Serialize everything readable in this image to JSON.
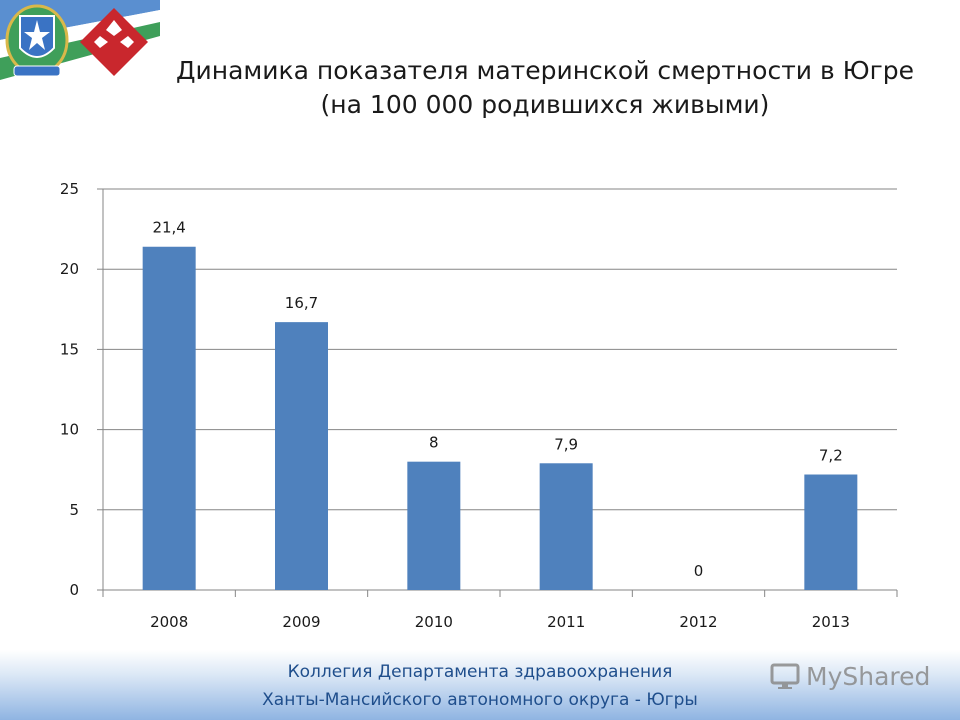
{
  "header": {
    "title_line1": "Динамика показателя материнской смертности в Югре",
    "title_line2": "(на 100 000 родившихся живыми)"
  },
  "colors": {
    "bar": "#4f81bd",
    "grid": "#868686",
    "flag_blue": "#5a8fd0",
    "flag_green": "#3f9f5a",
    "flag_white": "#ffffff",
    "emblem_red": "#c9272d",
    "footer_text": "#1f4e8c"
  },
  "chart_data": {
    "type": "bar",
    "title": "",
    "xlabel": "",
    "ylabel": "",
    "categories": [
      "2008",
      "2009",
      "2010",
      "2011",
      "2012",
      "2013"
    ],
    "values": [
      21.4,
      16.7,
      8,
      7.9,
      0,
      7.2
    ],
    "data_labels": [
      "21,4",
      "16,7",
      "8",
      "7,9",
      "0",
      "7,2"
    ],
    "ylim": [
      0,
      25
    ],
    "yticks": [
      0,
      5,
      10,
      15,
      20,
      25
    ],
    "ytick_labels": [
      "0",
      "5",
      "10",
      "15",
      "20",
      "25"
    ],
    "grid": true,
    "legend": "none"
  },
  "footer": {
    "line1": "Коллегия Департамента здравоохранения",
    "line2": "Ханты-Мансийского автономного округа - Югры"
  },
  "watermark": {
    "text": "MyShared",
    "icon": "presentation-monitor-icon"
  }
}
